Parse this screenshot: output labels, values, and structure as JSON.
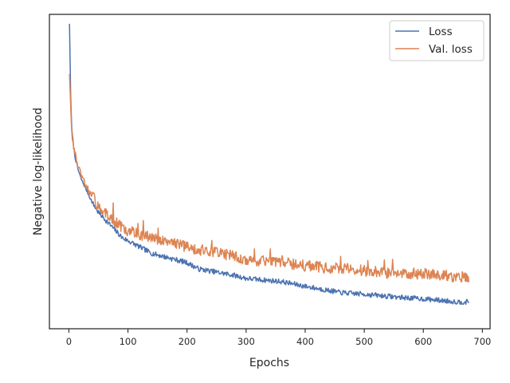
{
  "chart_data": {
    "type": "line",
    "title": "",
    "xlabel": "Epochs",
    "ylabel": "Negative log-likelihood",
    "xlim": [
      -33,
      713
    ],
    "ylim": [
      0,
      1
    ],
    "xticks": [
      0,
      100,
      200,
      300,
      400,
      500,
      600,
      700
    ],
    "yticks_shown": false,
    "grid": false,
    "legend": {
      "position": "top-right",
      "entries": [
        "Loss",
        "Val. loss"
      ]
    },
    "series": [
      {
        "name": "Loss",
        "color": "#4c72b0",
        "x": [
          1,
          3,
          5,
          8,
          10,
          15,
          20,
          30,
          40,
          50,
          60,
          70,
          80,
          90,
          100,
          120,
          140,
          160,
          180,
          200,
          220,
          250,
          280,
          300,
          330,
          360,
          400,
          430,
          460,
          500,
          530,
          560,
          600,
          630,
          660,
          677
        ],
        "y": [
          0.97,
          0.74,
          0.63,
          0.58,
          0.55,
          0.51,
          0.48,
          0.44,
          0.4,
          0.37,
          0.35,
          0.33,
          0.31,
          0.29,
          0.28,
          0.26,
          0.24,
          0.23,
          0.22,
          0.21,
          0.19,
          0.18,
          0.17,
          0.16,
          0.155,
          0.15,
          0.135,
          0.125,
          0.115,
          0.11,
          0.105,
          0.1,
          0.095,
          0.09,
          0.085,
          0.085
        ]
      },
      {
        "name": "Val. loss",
        "color": "#dd8452",
        "x": [
          1,
          3,
          5,
          8,
          10,
          15,
          20,
          30,
          40,
          50,
          60,
          70,
          80,
          90,
          100,
          120,
          140,
          160,
          180,
          200,
          220,
          250,
          280,
          300,
          330,
          360,
          400,
          430,
          460,
          500,
          530,
          560,
          600,
          630,
          660,
          677
        ],
        "y": [
          0.81,
          0.71,
          0.62,
          0.58,
          0.56,
          0.52,
          0.49,
          0.45,
          0.42,
          0.39,
          0.37,
          0.35,
          0.34,
          0.32,
          0.31,
          0.3,
          0.29,
          0.28,
          0.27,
          0.26,
          0.25,
          0.245,
          0.23,
          0.22,
          0.215,
          0.21,
          0.2,
          0.195,
          0.19,
          0.185,
          0.18,
          0.175,
          0.175,
          0.17,
          0.165,
          0.165
        ]
      }
    ]
  }
}
